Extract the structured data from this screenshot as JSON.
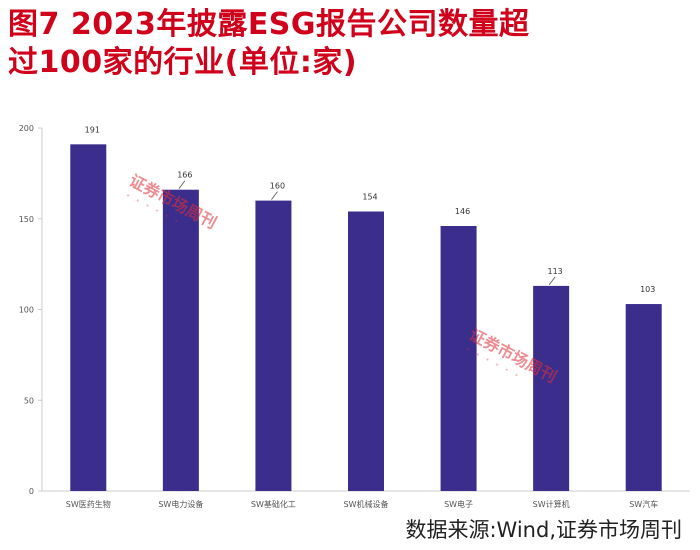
{
  "title": {
    "line1": "图7  2023年披露ESG报告公司数量超",
    "line2": "过100家的行业(单位:家)"
  },
  "source_note": "数据来源:Wind,证券市场周刊",
  "watermark_text": "证券市场周刊",
  "colors": {
    "bar": "#3a2d8c",
    "title": "#d0021b",
    "axis": "#cccccc",
    "tick_text": "#555555",
    "stamp": "#e0303a"
  },
  "chart_data": {
    "type": "bar",
    "title": "2023年披露ESG报告公司数量超过100家的行业",
    "categories": [
      "SW医药生物",
      "SW电力设备",
      "SW基础化工",
      "SW机械设备",
      "SW电子",
      "SW计算机",
      "SW汽车"
    ],
    "values": [
      191,
      166,
      160,
      154,
      146,
      113,
      103
    ],
    "value_labels": [
      "191",
      "166",
      "160",
      "154",
      "146",
      "113",
      "103"
    ],
    "ylim": [
      0,
      200
    ],
    "yticks": [
      0,
      50,
      100,
      150,
      200
    ],
    "xlabel": "",
    "ylabel": "",
    "unit": "家",
    "grid": false,
    "legend": "none"
  }
}
